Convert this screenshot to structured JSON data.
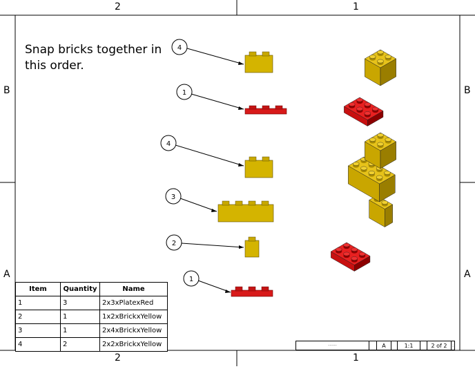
{
  "zones": {
    "top_left": "2",
    "top_right": "1",
    "bottom_left": "2",
    "bottom_right": "1",
    "left_top": "B",
    "left_bottom": "A",
    "right_top": "B",
    "right_bottom": "A"
  },
  "instruction": "Snap bricks together in this order.",
  "callouts": [
    {
      "number": "4",
      "part": "2x2xBrickxYellow"
    },
    {
      "number": "1",
      "part": "2x3xPlatexRed"
    },
    {
      "number": "4",
      "part": "2x2xBrickxYellow"
    },
    {
      "number": "3",
      "part": "2x4xBrickxYellow"
    },
    {
      "number": "2",
      "part": "1x2xBrickxYellow"
    },
    {
      "number": "1",
      "part": "2x3xPlatexRed"
    }
  ],
  "bom": {
    "headers": [
      "Item",
      "Quantity",
      "Name"
    ],
    "rows": [
      [
        "1",
        "3",
        "2x3xPlatexRed"
      ],
      [
        "2",
        "1",
        "1x2xBrickxYellow"
      ],
      [
        "3",
        "1",
        "2x4xBrickxYellow"
      ],
      [
        "4",
        "2",
        "2x2xBrickxYellow"
      ]
    ]
  },
  "title_block": {
    "size": "A",
    "scale": "1:1",
    "sheet": "2 of 2"
  },
  "colors": {
    "yellow": "#d4b400",
    "yellow_dark": "#8a7400",
    "red": "#d81a1a",
    "red_dark": "#7a0000",
    "line": "#000000"
  }
}
